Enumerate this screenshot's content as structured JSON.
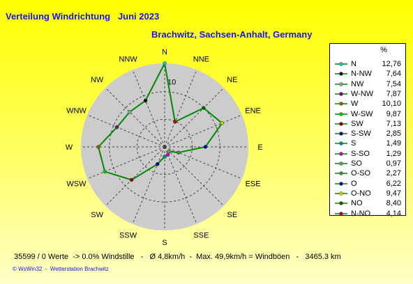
{
  "header": {
    "title": "Verteilung Windrichtung   Juni 2023",
    "subtitle": "Brachwitz, Sachsen-Anhalt, Germany"
  },
  "footer": {
    "summary": "35599 / 0 Werte  -> 0.0% Windstille   -   Ø 4,8km/h  -  Max. 49,9km/h = Windböen   -   3465.3 km",
    "credit": "© WsWin32  -  Wetterstation Brachwitz"
  },
  "legend": {
    "unit": "%"
  },
  "colors": {
    "line": "#008800",
    "disc": "#cccccc",
    "title": "#1515e6"
  },
  "chart_data": {
    "type": "radar",
    "title": "Verteilung Windrichtung   Juni 2023",
    "subtitle": "Brachwitz, Sachsen-Anhalt, Germany",
    "unit": "%",
    "ring_labels": [
      "10"
    ],
    "ring_max": 12.76,
    "grid": true,
    "legend_position": "right",
    "compass_labels": [
      "N",
      "NNE",
      "NE",
      "ENE",
      "E",
      "ESE",
      "SE",
      "SSE",
      "S",
      "SSW",
      "SW",
      "WSW",
      "W",
      "WNW",
      "NW",
      "NNW"
    ],
    "series": [
      {
        "label": "N",
        "value": 12.76,
        "angle_deg": 0,
        "color": "#00cccc"
      },
      {
        "label": "N-NW",
        "value": 7.64,
        "angle_deg": 337.5,
        "color": "#000000"
      },
      {
        "label": "NW",
        "value": 7.54,
        "angle_deg": 315,
        "color": "#88aa88"
      },
      {
        "label": "W-NW",
        "value": 7.87,
        "angle_deg": 292.5,
        "color": "#880088"
      },
      {
        "label": "W",
        "value": 10.1,
        "angle_deg": 270,
        "color": "#886600"
      },
      {
        "label": "W-SW",
        "value": 9.87,
        "angle_deg": 247.5,
        "color": "#00cc00"
      },
      {
        "label": "SW",
        "value": 7.13,
        "angle_deg": 225,
        "color": "#880000"
      },
      {
        "label": "S-SW",
        "value": 2.85,
        "angle_deg": 202.5,
        "color": "#000088"
      },
      {
        "label": "S",
        "value": 1.49,
        "angle_deg": 180,
        "color": "#008888"
      },
      {
        "label": "S-SO",
        "value": 1.29,
        "angle_deg": 157.5,
        "color": "#cc00cc"
      },
      {
        "label": "SO",
        "value": 0.97,
        "angle_deg": 135,
        "color": "#669966"
      },
      {
        "label": "O-SO",
        "value": 2.27,
        "angle_deg": 112.5,
        "color": "#448844"
      },
      {
        "label": "O",
        "value": 6.22,
        "angle_deg": 90,
        "color": "#0000aa"
      },
      {
        "label": "O-NO",
        "value": 9.47,
        "angle_deg": 67.5,
        "color": "#cccc00"
      },
      {
        "label": "NO",
        "value": 8.4,
        "angle_deg": 45,
        "color": "#006600"
      },
      {
        "label": "N-NO",
        "value": 4.14,
        "angle_deg": 22.5,
        "color": "#cc0000"
      }
    ]
  }
}
